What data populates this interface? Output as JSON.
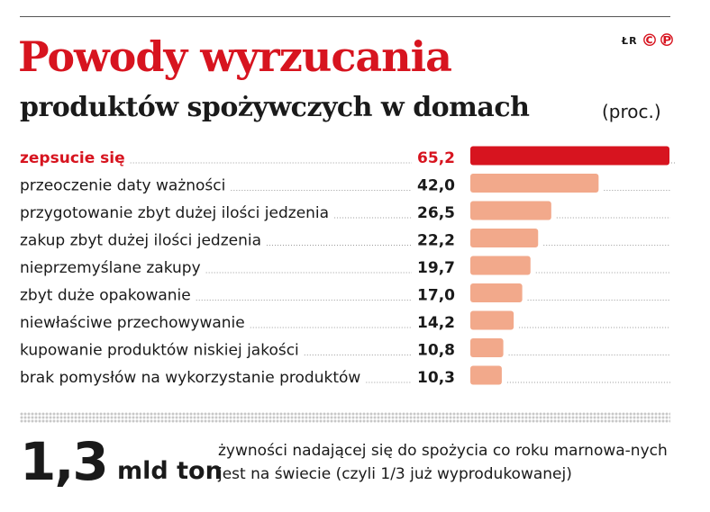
{
  "title": "Powody wyrzucania",
  "subtitle": "produktów spożywczych w domach",
  "unit": "(proc.)",
  "credit": {
    "author": "ŁR",
    "logo": "©℗"
  },
  "colors": {
    "accent": "#d7141f",
    "bar": "#f2a98b",
    "title": "#d7141f",
    "text": "#1a1a1a",
    "dots": "#bfbfbf"
  },
  "chart_data": {
    "type": "bar",
    "orientation": "horizontal",
    "categories": [
      "zepsucie się",
      "przeoczenie daty ważności",
      "przygotowanie zbyt dużej ilości jedzenia",
      "zakup zbyt dużej ilości jedzenia",
      "nieprzemyślane zakupy",
      "zbyt duże opakowanie",
      "niewłaściwe przechowywanie",
      "kupowanie produktów niskiej jakości",
      "brak pomysłów na wykorzystanie produktów"
    ],
    "values": [
      65.2,
      42.0,
      26.5,
      22.2,
      19.7,
      17.0,
      14.2,
      10.8,
      10.3
    ],
    "value_labels": [
      "65,2",
      "42,0",
      "26,5",
      "22,2",
      "19,7",
      "17,0",
      "14,2",
      "10,8",
      "10,3"
    ],
    "highlight_index": 0,
    "xlim": [
      0,
      65.2
    ],
    "grid": false,
    "legend": false
  },
  "footer": {
    "number": "1,3",
    "unit": "mld ton",
    "note": "żywności nadającej się do spożycia co roku marnowa-nych jest na świecie (czyli 1/3 już wyprodukowanej)"
  }
}
